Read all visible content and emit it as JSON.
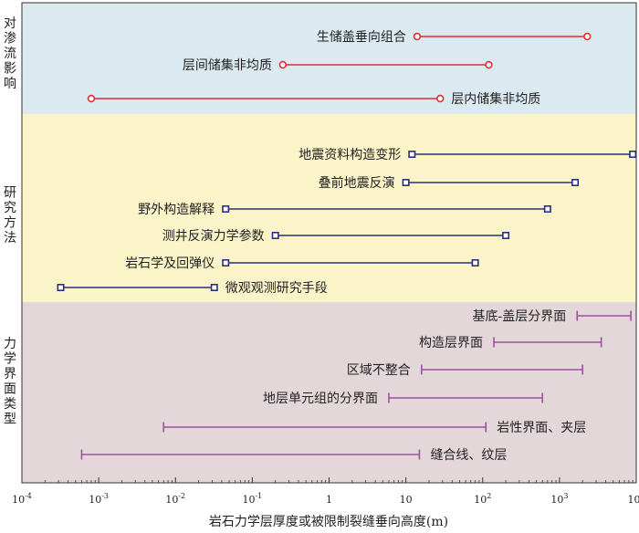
{
  "chart_data": {
    "type": "range-bar",
    "xlabel": "岩石力学层厚度或被限制裂缝垂向高度(m)",
    "xscale": "log",
    "xlim": [
      0.0001,
      10000
    ],
    "x_ticks": [
      {
        "value": 0.0001,
        "base": "10",
        "exp": "-4"
      },
      {
        "value": 0.001,
        "base": "10",
        "exp": "-3"
      },
      {
        "value": 0.01,
        "base": "10",
        "exp": "-2"
      },
      {
        "value": 0.1,
        "base": "10",
        "exp": "-1"
      },
      {
        "value": 1,
        "base": "1",
        "exp": ""
      },
      {
        "value": 10,
        "base": "10",
        "exp": ""
      },
      {
        "value": 100,
        "base": "10",
        "exp": "2"
      },
      {
        "value": 1000,
        "base": "10",
        "exp": "3"
      },
      {
        "value": 10000,
        "base": "10",
        "exp": "4"
      }
    ],
    "groups": [
      {
        "name": "对渗流影响",
        "color": "#e03030",
        "background": "#dbeaf0",
        "marker": "circle",
        "items": [
          {
            "label": "生储盖垂向组合",
            "min": 14,
            "max": 2300,
            "label_side": "left"
          },
          {
            "label": "层间储集非均质",
            "min": 0.25,
            "max": 120,
            "label_side": "left"
          },
          {
            "label": "层内储集非均质",
            "min": 0.0008,
            "max": 28,
            "label_side": "right"
          }
        ]
      },
      {
        "name": "研究方法",
        "color": "#2a2f80",
        "background": "#fbf4c8",
        "marker": "square",
        "items": [
          {
            "label": "地震资料构造变形",
            "min": 12,
            "max": 9000,
            "label_side": "left"
          },
          {
            "label": "叠前地震反演",
            "min": 10,
            "max": 1600,
            "label_side": "left"
          },
          {
            "label": "野外构造解释",
            "min": 0.045,
            "max": 700,
            "label_side": "left"
          },
          {
            "label": "测井反演力学参数",
            "min": 0.2,
            "max": 200,
            "label_side": "left"
          },
          {
            "label": "岩石学及回弹仪",
            "min": 0.045,
            "max": 80,
            "label_side": "left"
          },
          {
            "label": "微观观测研究手段",
            "min": 0.00032,
            "max": 0.032,
            "label_side": "right"
          }
        ]
      },
      {
        "name": "力学界面类型",
        "color": "#a050a0",
        "background": "#e3d7da",
        "marker": "bracket",
        "items": [
          {
            "label": "基底-盖层分界面",
            "min": 1700,
            "max": 8500,
            "label_side": "left"
          },
          {
            "label": "构造层界面",
            "min": 140,
            "max": 3500,
            "label_side": "left"
          },
          {
            "label": "区域不整合",
            "min": 16,
            "max": 2000,
            "label_side": "left"
          },
          {
            "label": "地层单元组的分界面",
            "min": 6,
            "max": 600,
            "label_side": "left"
          },
          {
            "label": "岩性界面、夹层",
            "min": 0.007,
            "max": 110,
            "label_side": "right"
          },
          {
            "label": "缝合线、纹层",
            "min": 0.0006,
            "max": 15,
            "label_side": "right"
          }
        ]
      }
    ]
  }
}
